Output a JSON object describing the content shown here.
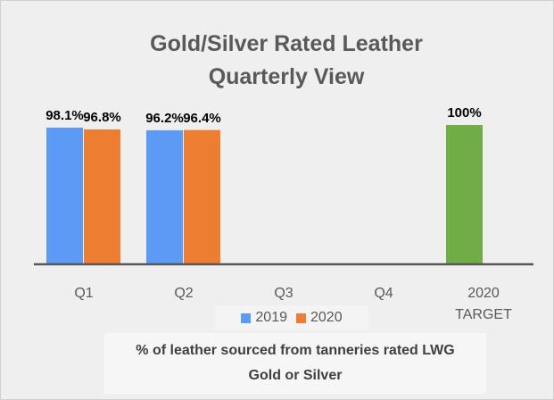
{
  "chart_data": {
    "type": "bar",
    "title": "Gold/Silver Rated Leather Quarterly View",
    "categories": [
      "Q1",
      "Q2",
      "Q3",
      "Q4",
      "2020 TARGET"
    ],
    "series": [
      {
        "name": "2019",
        "color": "#5b9bf5",
        "values": [
          98.1,
          96.2,
          null,
          null,
          100
        ],
        "value_labels": [
          "98.1%",
          "96.2%",
          null,
          null,
          "100%"
        ],
        "point_colors": {
          "4": "#70ad47"
        }
      },
      {
        "name": "2020",
        "color": "#ed7d31",
        "values": [
          96.8,
          96.4,
          null,
          null,
          null
        ],
        "value_labels": [
          "96.8%",
          "96.4%",
          null,
          null,
          null
        ]
      }
    ],
    "ylim": [
      0,
      100
    ],
    "legend": "bottom",
    "axis_title": "% of leather sourced from tanneries rated LWG Gold or Silver"
  }
}
